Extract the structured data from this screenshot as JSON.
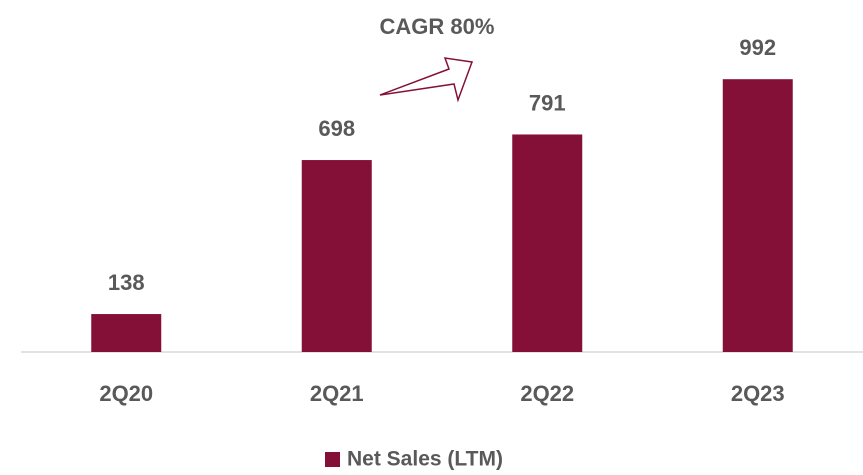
{
  "chart_data": {
    "type": "bar",
    "annotation": "CAGR 80%",
    "categories": [
      "2Q20",
      "2Q21",
      "2Q22",
      "2Q23"
    ],
    "series": [
      {
        "name": "Net Sales (LTM)",
        "color": "#841038",
        "values": [
          138,
          698,
          791,
          992
        ]
      }
    ],
    "ylim": [
      0,
      1280
    ],
    "legend": "bottom"
  }
}
